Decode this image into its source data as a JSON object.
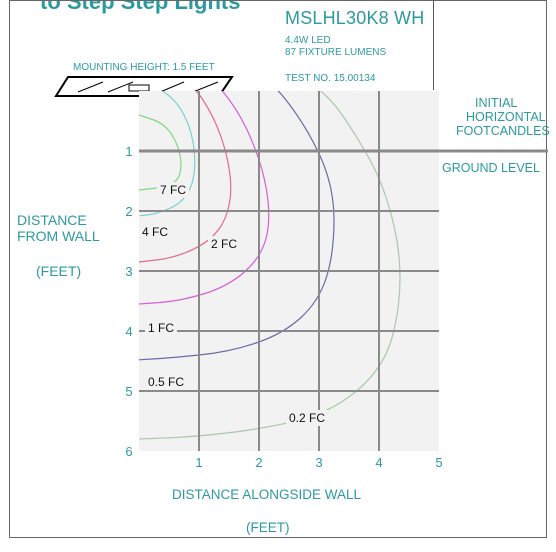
{
  "header": {
    "clipped_title": "to Step      Step Lights",
    "model": "MSLHL30K8 WH",
    "wattage": "4.4W LED",
    "lumens": "87 FIXTURE LUMENS",
    "test_no": "TEST NO. 15.00134",
    "mounting_height": "MOUNTING HEIGHT: 1.5 FEET"
  },
  "right_labels": {
    "line1": "INITIAL",
    "line2": "HORIZONTAL",
    "line3": "FOOTCANDLES",
    "ground": "GROUND LEVEL"
  },
  "left_labels": {
    "line1": "DISTANCE",
    "line2": "FROM WALL",
    "unit": "(FEET)"
  },
  "bottom_labels": {
    "title": "DISTANCE ALONGSIDE WALL",
    "unit": "(FEET)"
  },
  "colors": {
    "teal": "#2b9aa0",
    "grid": "#8a8a8a",
    "plot_bg": "#f2f2f2"
  },
  "chart_data": {
    "type": "contour",
    "x_ticks": [
      "1",
      "2",
      "3",
      "4",
      "5"
    ],
    "y_ticks": [
      "1",
      "2",
      "3",
      "4",
      "5",
      "6"
    ],
    "xlim": [
      0,
      5
    ],
    "ylim": [
      0,
      6
    ],
    "xlabel": "DISTANCE ALONGSIDE WALL",
    "ylabel": "DISTANCE FROM WALL",
    "series": [
      {
        "name": "0.2 FC",
        "label": "0.2 FC",
        "color": "#a8c8a8",
        "points": [
          [
            0,
            -1.05
          ],
          [
            1,
            -0.95
          ],
          [
            2.2,
            -0.55
          ],
          [
            3.1,
            0
          ],
          [
            3.6,
            0.7
          ],
          [
            4.1,
            1.6
          ],
          [
            4.4,
            2.9
          ],
          [
            4.25,
            4.2
          ],
          [
            3.8,
            4.9
          ],
          [
            3.05,
            5.4
          ],
          [
            2.1,
            5.62
          ],
          [
            1.0,
            5.76
          ],
          [
            0,
            5.8
          ]
        ],
        "label_x": 2.5,
        "label_y": 5.45
      },
      {
        "name": "0.5 FC",
        "label": "0.5 FC",
        "color": "#6a6aa8",
        "points": [
          [
            0,
            -0.9
          ],
          [
            1,
            -0.8
          ],
          [
            2.1,
            -0.3
          ],
          [
            2.8,
            0.6
          ],
          [
            3.25,
            1.6
          ],
          [
            3.25,
            2.7
          ],
          [
            3.0,
            3.5
          ],
          [
            2.4,
            4.05
          ],
          [
            1.5,
            4.35
          ],
          [
            0.5,
            4.45
          ],
          [
            0,
            4.48
          ]
        ],
        "label_x": 0.15,
        "label_y": 4.85
      },
      {
        "name": "1 FC",
        "label": "1 FC",
        "color": "#d65fd6",
        "points": [
          [
            0,
            -0.7
          ],
          [
            0.9,
            -0.5
          ],
          [
            1.6,
            0.2
          ],
          [
            2.05,
            1.2
          ],
          [
            2.2,
            2.1
          ],
          [
            2.05,
            2.75
          ],
          [
            1.5,
            3.25
          ],
          [
            0.7,
            3.5
          ],
          [
            0,
            3.55
          ]
        ],
        "label_x": 0.15,
        "label_y": 3.95
      },
      {
        "name": "2 FC",
        "label": "2 FC",
        "color": "#e36a8a",
        "points": [
          [
            0,
            -0.4
          ],
          [
            0.8,
            -0.25
          ],
          [
            1.3,
            0.5
          ],
          [
            1.55,
            1.4
          ],
          [
            1.5,
            2.05
          ],
          [
            1.2,
            2.5
          ],
          [
            0.6,
            2.78
          ],
          [
            0,
            2.85
          ]
        ],
        "label_x": 1.2,
        "label_y": 2.55
      },
      {
        "name": "4 FC",
        "label": "4 FC",
        "color": "#7ccfcf",
        "points": [
          [
            0,
            -0.2
          ],
          [
            0.6,
            0.1
          ],
          [
            0.9,
            0.7
          ],
          [
            0.95,
            1.4
          ],
          [
            0.75,
            1.85
          ],
          [
            0.3,
            2.05
          ],
          [
            0,
            2.08
          ]
        ],
        "label_x": 0.05,
        "label_y": 2.35
      },
      {
        "name": "7 FC",
        "label": "7 FC",
        "color": "#7ed87e",
        "points": [
          [
            0,
            0.4
          ],
          [
            0.45,
            0.55
          ],
          [
            0.7,
            1.0
          ],
          [
            0.7,
            1.45
          ],
          [
            0.45,
            1.6
          ],
          [
            0,
            1.65
          ]
        ],
        "label_x": 0.35,
        "label_y": 1.65
      }
    ]
  }
}
